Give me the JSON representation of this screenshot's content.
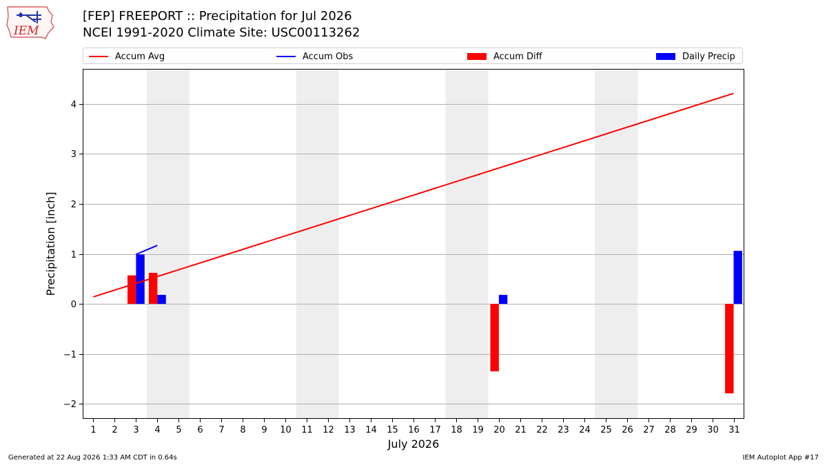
{
  "logo": {
    "text": "IEM",
    "icon": "iem-iowa-logo-icon",
    "color": "#cc2222"
  },
  "header": {
    "title_line1": "[FEP] FREEPORT :: Precipitation for Jul 2026",
    "title_line2": "NCEI 1991-2020 Climate Site: USC00113262"
  },
  "legend": {
    "placement": "top",
    "items": [
      {
        "label": "Accum Avg",
        "kind": "line",
        "color": "#ff0000"
      },
      {
        "label": "Accum Obs",
        "kind": "line",
        "color": "#0000ff"
      },
      {
        "label": "Accum Diff",
        "kind": "bar",
        "color": "#ff0000"
      },
      {
        "label": "Daily Precip",
        "kind": "bar",
        "color": "#0000ff"
      }
    ]
  },
  "footer": {
    "left": "Generated at 22 Aug 2026 1:33 AM CDT in 0.64s",
    "right": "IEM Autoplot App #17"
  },
  "chart_data": {
    "type": "bar",
    "xlabel": "July 2026",
    "ylabel": "Precipitation [inch]",
    "xlim": [
      0.5,
      31.5
    ],
    "ylim": [
      -2.3,
      4.7
    ],
    "x_ticks": [
      1,
      2,
      3,
      4,
      5,
      6,
      7,
      8,
      9,
      10,
      11,
      12,
      13,
      14,
      15,
      16,
      17,
      18,
      19,
      20,
      21,
      22,
      23,
      24,
      25,
      26,
      27,
      28,
      29,
      30,
      31
    ],
    "y_ticks": [
      -2,
      -1,
      0,
      1,
      2,
      3,
      4
    ],
    "y_tick_labels": [
      "−2",
      "−1",
      "0",
      "1",
      "2",
      "3",
      "4"
    ],
    "grid": "y",
    "weekend_shading": {
      "color": "#eeeeee",
      "ranges": [
        [
          3.5,
          5.5
        ],
        [
          10.5,
          12.5
        ],
        [
          17.5,
          19.5
        ],
        [
          24.5,
          26.5
        ]
      ]
    },
    "accum_avg": {
      "x": [
        1,
        31
      ],
      "y": [
        0.14,
        4.21
      ],
      "color": "#ff0000"
    },
    "accum_obs": {
      "x": [
        3,
        4
      ],
      "y": [
        0.99,
        1.17
      ],
      "color": "#0000ff"
    },
    "accum_diff": {
      "x": [
        3,
        4,
        20,
        31
      ],
      "y": [
        0.57,
        0.62,
        -1.35,
        -1.79
      ],
      "color": "#ff0000"
    },
    "daily_precip": {
      "x": [
        3,
        4,
        20,
        31
      ],
      "y": [
        0.99,
        0.18,
        0.18,
        1.06
      ],
      "color": "#0000ff"
    }
  }
}
